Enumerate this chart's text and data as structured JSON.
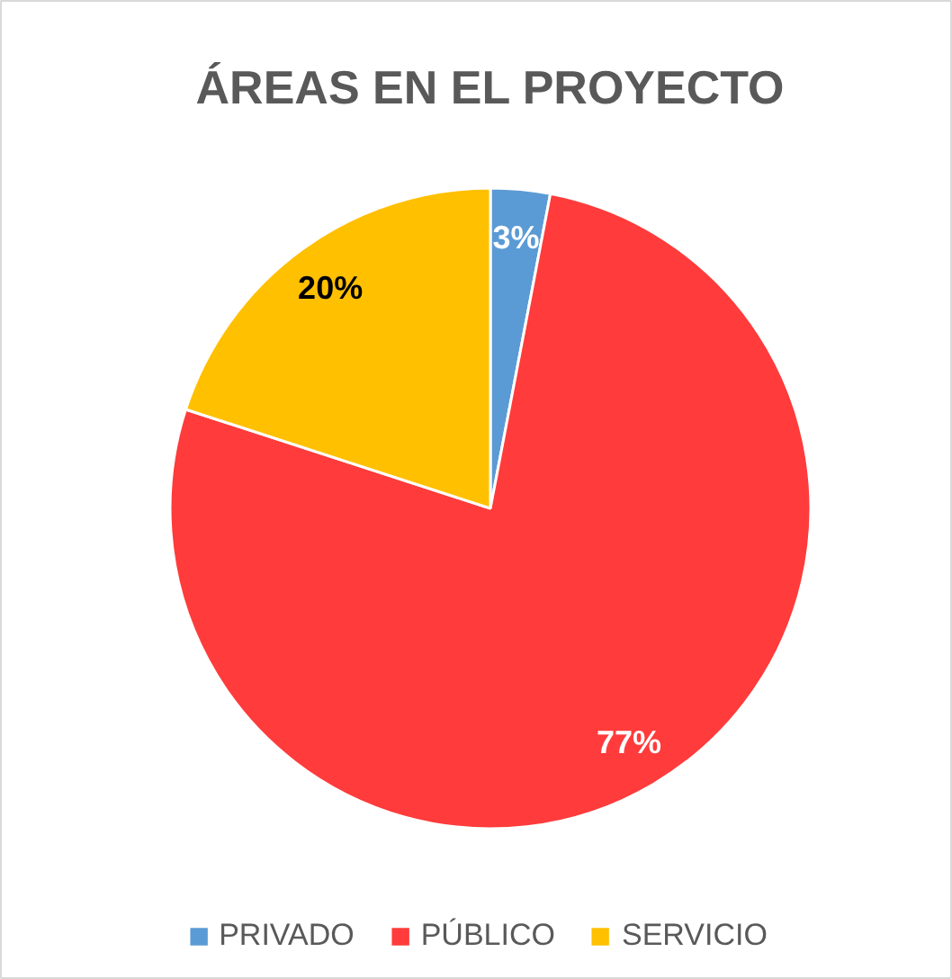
{
  "chart_data": {
    "type": "pie",
    "title": "ÁREAS EN EL PROYECTO",
    "categories": [
      "PRIVADO",
      "PÚBLICO",
      "SERVICIO"
    ],
    "values": [
      3,
      77,
      20
    ],
    "colors": [
      "#5b9bd5",
      "#ff3b3b",
      "#ffc000"
    ],
    "value_labels": [
      "3%",
      "77%",
      "20%"
    ],
    "legend": "bottom"
  }
}
